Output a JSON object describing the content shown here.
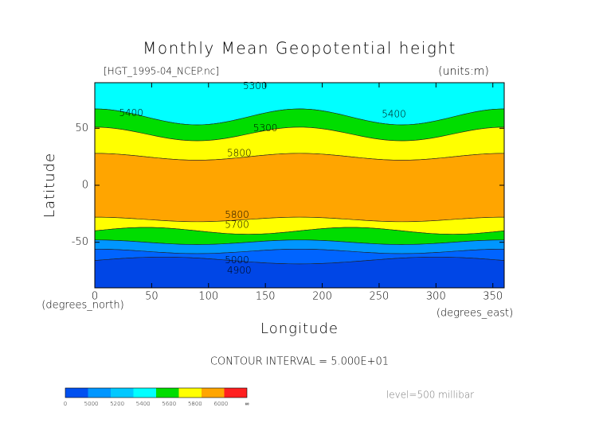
{
  "chart_data": {
    "type": "contour-map",
    "title": "Monthly Mean Geopotential height",
    "subtitle": "[HGT_1995-04_NCEP.nc]",
    "units": "(units:m)",
    "x_label": "Longitude",
    "y_label": "Latitude",
    "x_unit": "(degrees_east)",
    "y_unit": "(degrees_north)",
    "xlim": [
      0,
      360
    ],
    "ylim": [
      -90,
      90
    ],
    "xticks": [
      0,
      50,
      100,
      150,
      200,
      250,
      300,
      350
    ],
    "yticks": [
      -50,
      0,
      50
    ],
    "contour_interval": "CONTOUR INTERVAL = 5.000E+01",
    "level": "level=500 millibar",
    "contour_labels": [
      {
        "text": "5300",
        "lon": 141,
        "lat": 87
      },
      {
        "text": "5400",
        "lon": 32,
        "lat": 63
      },
      {
        "text": "5300",
        "lon": 150,
        "lat": 50
      },
      {
        "text": "5400",
        "lon": 263,
        "lat": 62
      },
      {
        "text": "5800",
        "lon": 127,
        "lat": 28
      },
      {
        "text": "5800",
        "lon": 125,
        "lat": -26
      },
      {
        "text": "5700",
        "lon": 125,
        "lat": -35
      },
      {
        "text": "5000",
        "lon": 125,
        "lat": -66
      },
      {
        "text": "4900",
        "lon": 127,
        "lat": -75
      }
    ],
    "colorbar": {
      "labels": [
        "0",
        "5000",
        "5200",
        "5400",
        "5600",
        "5800",
        "6000",
        "∞"
      ],
      "colors": [
        "#0050f0",
        "#0096ff",
        "#00c8ff",
        "#00ffff",
        "#00dd00",
        "#ffff00",
        "#ffa500",
        "#ff2020"
      ]
    }
  }
}
